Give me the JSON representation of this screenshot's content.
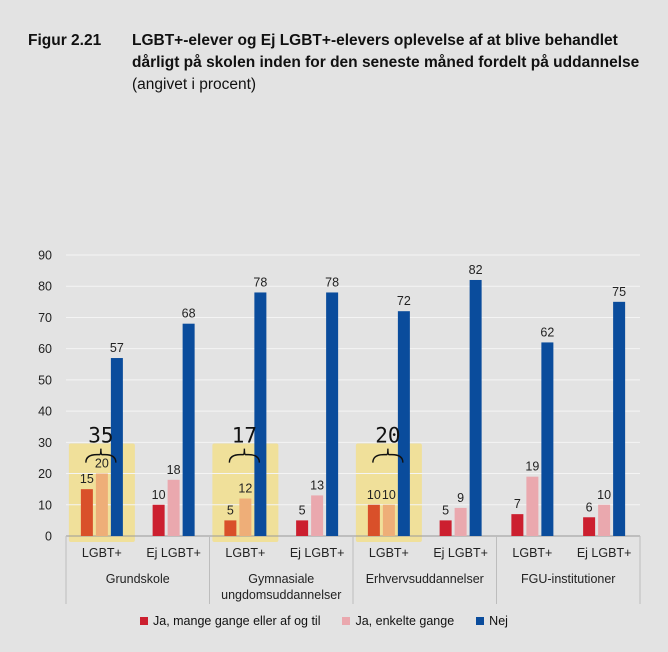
{
  "figure": {
    "label": "Figur 2.21",
    "title_bold": "LGBT+-elever og Ej LGBT+-elevers oplevelse af at blive behandlet dårligt på skolen inden for den seneste måned fordelt på uddannelse",
    "title_normal": "(angivet i procent)"
  },
  "chart_data": {
    "type": "bar",
    "ylim": [
      0,
      90
    ],
    "yticks": [
      "0",
      "10",
      "20",
      "30",
      "40",
      "50",
      "60",
      "70",
      "80",
      "90"
    ],
    "grid": true,
    "legend_position": "bottom",
    "groups": [
      {
        "name": "Grundskole",
        "lines": [
          "Grundskole"
        ]
      },
      {
        "name": "Gymnasiale ungdomsuddannelser",
        "lines": [
          "Gymnasiale",
          "ungdomsuddannelser"
        ]
      },
      {
        "name": "Erhvervsuddannelser",
        "lines": [
          "Erhvervsuddannelser"
        ]
      },
      {
        "name": "FGU-institutioner",
        "lines": [
          "FGU-institutioner"
        ]
      }
    ],
    "categories": [
      "LGBT+",
      "Ej LGBT+",
      "LGBT+",
      "Ej LGBT+",
      "LGBT+",
      "Ej LGBT+",
      "LGBT+",
      "Ej LGBT+"
    ],
    "series": [
      {
        "name": "Ja, mange gange eller af og til",
        "color": "#cc1f2f",
        "highlight_color": "#d9502a",
        "values": [
          15,
          10,
          5,
          5,
          10,
          5,
          7,
          6
        ]
      },
      {
        "name": "Ja, enkelte gange",
        "color": "#eaa8ae",
        "highlight_color": "#eeae78",
        "values": [
          20,
          18,
          12,
          13,
          10,
          9,
          19,
          10
        ]
      },
      {
        "name": "Nej",
        "color": "#0a4c9c",
        "highlight_color": "#0a4c9c",
        "values": [
          57,
          68,
          78,
          78,
          72,
          82,
          62,
          75
        ]
      }
    ],
    "highlighted_categories": [
      0,
      2,
      4
    ],
    "annotations": [
      {
        "category_index": 0,
        "text": "35"
      },
      {
        "category_index": 2,
        "text": "17"
      },
      {
        "category_index": 4,
        "text": "20"
      }
    ],
    "highlight_color": "#f0e09a"
  }
}
